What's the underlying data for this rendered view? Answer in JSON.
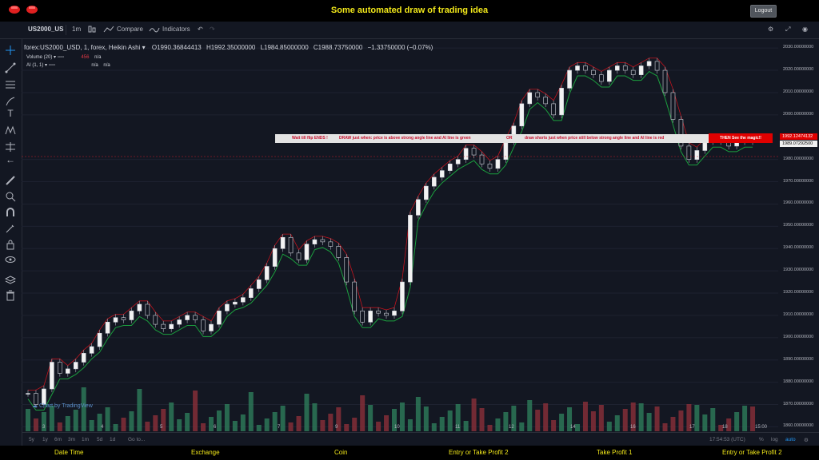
{
  "app": {
    "title": "Some automated draw of trading idea",
    "logout_label": "Logout"
  },
  "toolbar": {
    "symbol": "US2000_US",
    "interval": "1m",
    "compare_label": "Compare",
    "indicators_label": "Indicators"
  },
  "legend": {
    "main": "forex:US2000_USD, 1, forex, Heikin Ashi",
    "open": "O1990.36844413",
    "high": "H1992.35000000",
    "low": "L1984.85000000",
    "close": "C1988.73750000",
    "change": "−1.33750000 (−0.07%)",
    "volume_label": "Volume (20)",
    "volume_value": "456",
    "volume_na": "n/a",
    "ai_label": "AI (1, 1)",
    "ai_na1": "n/a",
    "ai_na2": "n/a"
  },
  "price_axis": {
    "ticks": [
      "2030.00000000",
      "2020.00000000",
      "2010.00000000",
      "2000.00000000",
      "1992.12474132",
      "1989.07292500",
      "1980.00000000",
      "1970.00000000",
      "1960.00000000",
      "1950.00000000",
      "1940.00000000",
      "1930.00000000",
      "1920.00000000",
      "1910.00000000",
      "1900.00000000",
      "1890.00000000",
      "1880.00000000",
      "1870.00000000",
      "1860.00000000"
    ],
    "tag_red": "1992.12474132",
    "tag_white": "1989.07292500"
  },
  "time_axis": [
    "3",
    "4",
    "5",
    "6",
    "7",
    "8",
    "9",
    "10",
    "11",
    "12",
    "13",
    "14",
    "15",
    "16",
    "17",
    "18",
    "15:00"
  ],
  "banner": {
    "part1": "Wait till flip ENDS  !",
    "part2": "DRAW just when:  price is above strong angle line and AI line is green",
    "part3": "OR",
    "part4": "draw shorts just when price still below strong angle line and AI line is red",
    "part5": "THEN See the magic!!"
  },
  "watermark": "Chart by TradingView",
  "bottombar": {
    "ranges": [
      "5y",
      "1y",
      "6m",
      "3m",
      "1m",
      "5d",
      "1d"
    ],
    "goto": "Go to...",
    "time": "17:54:53 (UTC)",
    "percent": "%",
    "log": "log",
    "auto": "auto"
  },
  "footer": [
    "Date Time",
    "Exchange",
    "Coin",
    "Entry or Take Profit 2",
    "Take Profit 1",
    "Entry or Take Profit 2"
  ],
  "colors": {
    "up": "#d1d4dc",
    "down": "#d1d4dc",
    "vol_up": "#2e7d5b",
    "vol_down": "#8b2f3a",
    "ai_green": "#1b9e3e",
    "ai_red": "#c0141e",
    "title": "#f2e81a"
  },
  "chart_data": {
    "type": "candlestick",
    "y_range": [
      1858,
      2034
    ],
    "series": [
      {
        "name": "forex:US2000_USD, 1, forex, Heikin Ashi",
        "closes": [
          1875,
          1870,
          1877,
          1889,
          1884,
          1886,
          1889,
          1893,
          1896,
          1902,
          1907,
          1909,
          1908,
          1912,
          1915,
          1910,
          1906,
          1904,
          1906,
          1908,
          1910,
          1908,
          1903,
          1906,
          1912,
          1915,
          1916,
          1918,
          1922,
          1926,
          1932,
          1940,
          1945,
          1938,
          1935,
          1942,
          1944,
          1943,
          1941,
          1936,
          1925,
          1912,
          1907,
          1912,
          1911,
          1910,
          1912,
          1925,
          1955,
          1962,
          1968,
          1972,
          1975,
          1978,
          1980,
          1985,
          1982,
          1978,
          1976,
          1980,
          1988,
          1995,
          2005,
          2010,
          2008,
          2005,
          2000,
          2012,
          2020,
          2022,
          2020,
          2018,
          2015,
          2020,
          2022,
          2020,
          2018,
          2022,
          2024,
          2020,
          2010,
          1998,
          1986,
          1980,
          1984,
          1988,
          1990,
          1988,
          1986,
          1988,
          1990,
          1988
        ]
      }
    ]
  }
}
